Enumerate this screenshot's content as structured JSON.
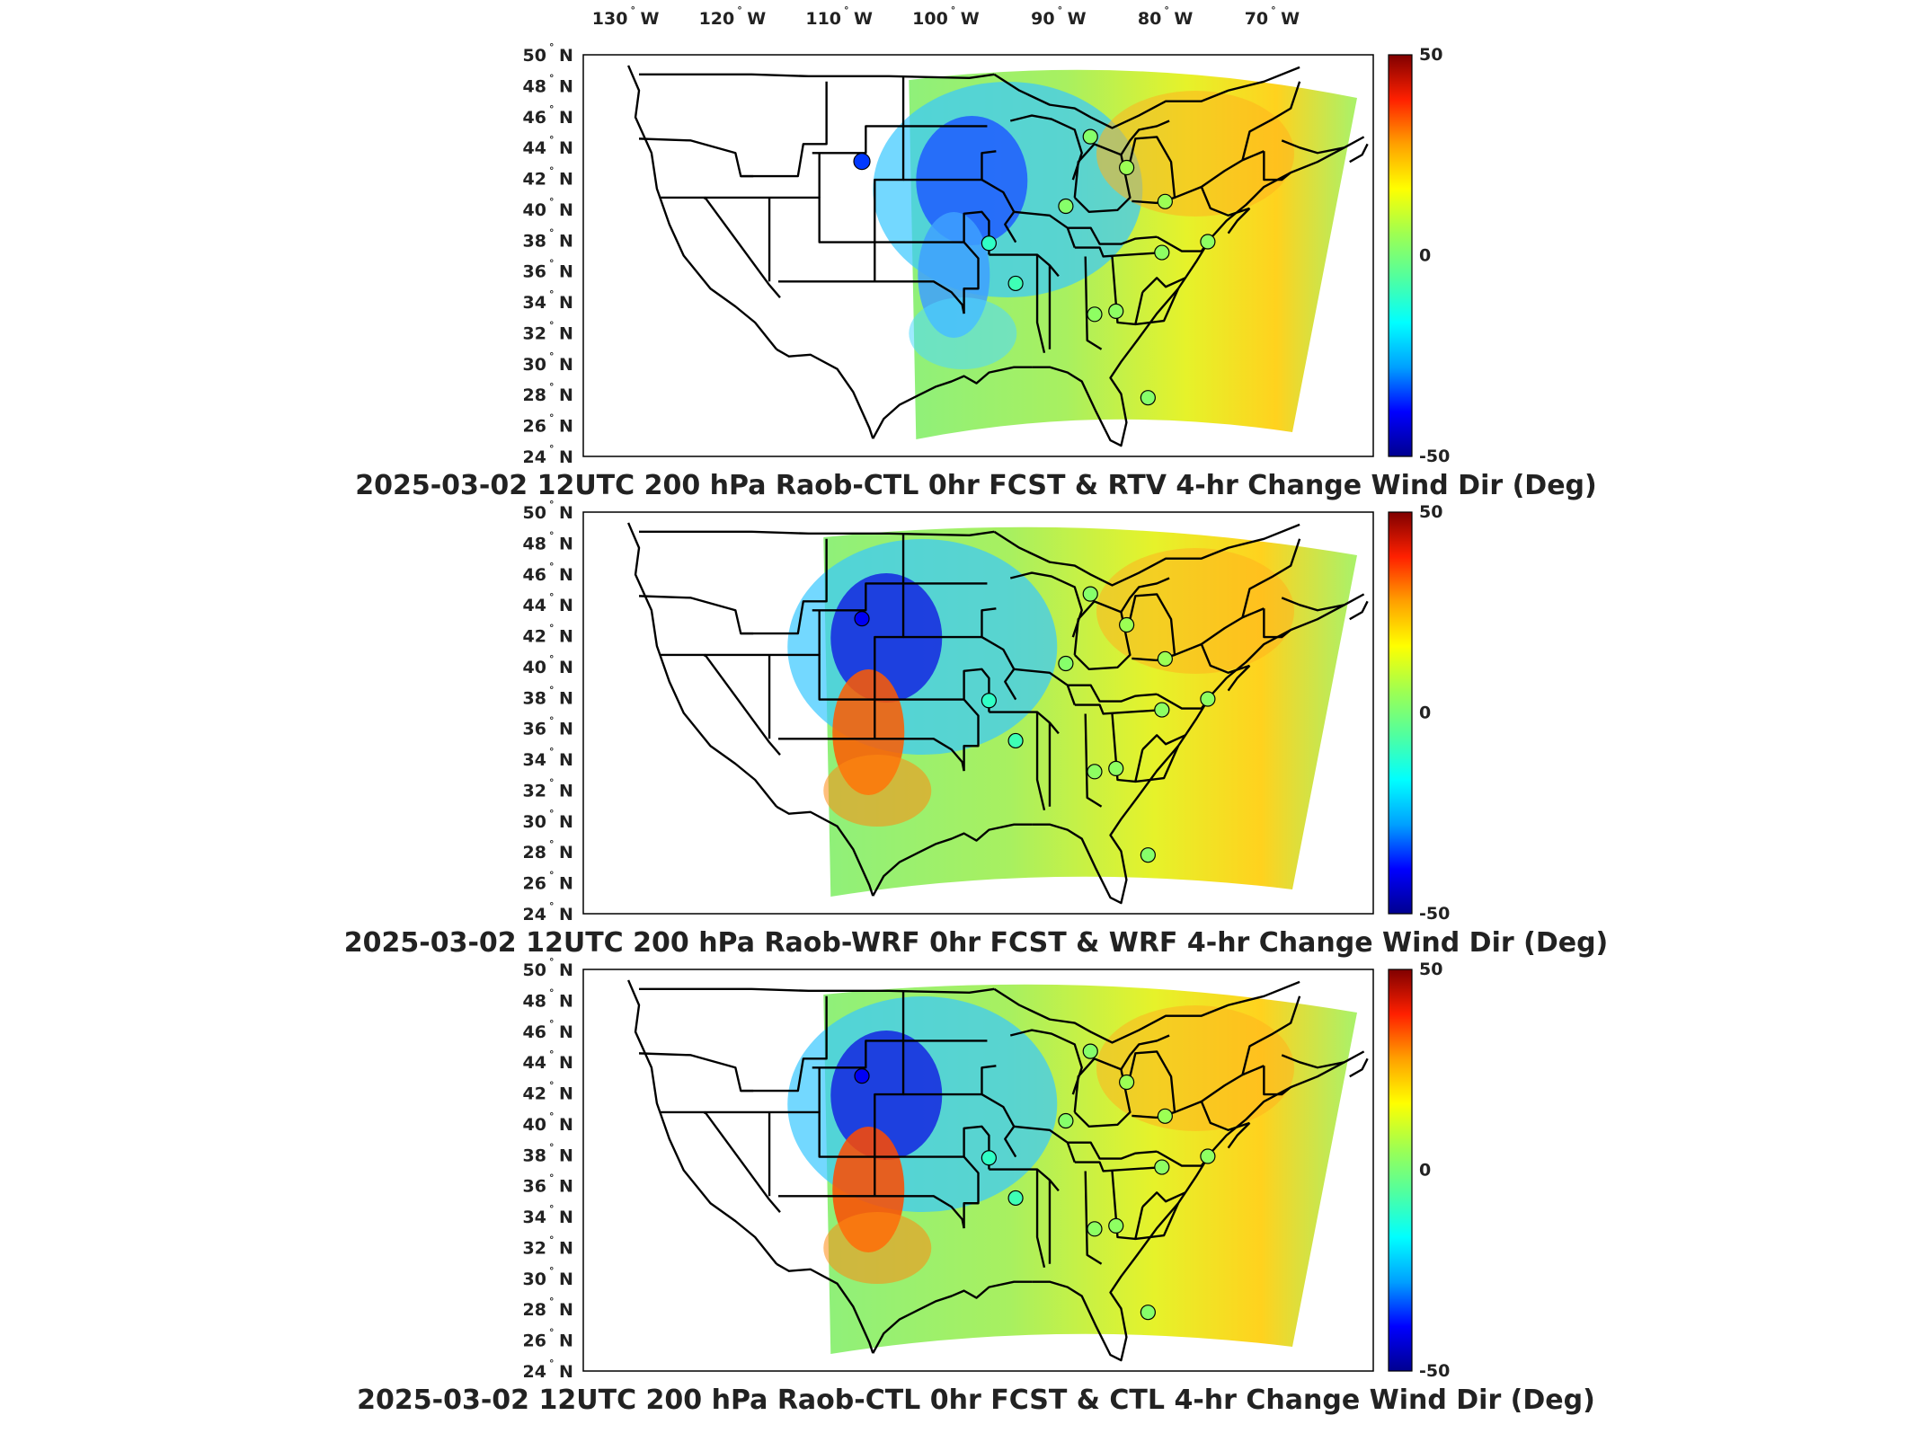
{
  "lon_ticks": [
    {
      "deg": "130",
      "hemi": "W"
    },
    {
      "deg": "120",
      "hemi": "W"
    },
    {
      "deg": "110",
      "hemi": "W"
    },
    {
      "deg": "100",
      "hemi": "W"
    },
    {
      "deg": "90",
      "hemi": "W"
    },
    {
      "deg": "80",
      "hemi": "W"
    },
    {
      "deg": "70",
      "hemi": "W"
    }
  ],
  "lat_ticks": [
    {
      "deg": "50",
      "hemi": "N"
    },
    {
      "deg": "48",
      "hemi": "N"
    },
    {
      "deg": "46",
      "hemi": "N"
    },
    {
      "deg": "44",
      "hemi": "N"
    },
    {
      "deg": "42",
      "hemi": "N"
    },
    {
      "deg": "40",
      "hemi": "N"
    },
    {
      "deg": "38",
      "hemi": "N"
    },
    {
      "deg": "36",
      "hemi": "N"
    },
    {
      "deg": "34",
      "hemi": "N"
    },
    {
      "deg": "32",
      "hemi": "N"
    },
    {
      "deg": "30",
      "hemi": "N"
    },
    {
      "deg": "28",
      "hemi": "N"
    },
    {
      "deg": "26",
      "hemi": "N"
    },
    {
      "deg": "24",
      "hemi": "N"
    }
  ],
  "colorbar": {
    "max_label": "50",
    "mid_label": "0",
    "min_label": "-50",
    "stops": [
      "#00008f",
      "#0000ff",
      "#00a0ff",
      "#00ffff",
      "#50ffa0",
      "#a0ff50",
      "#ffff00",
      "#ffa000",
      "#ff2000",
      "#800000"
    ]
  },
  "panels": [
    {
      "title": "2025-03-02 12UTC 200 hPa Raob-CTL 0hr FCST & RTV 4-hr Change Wind Dir (Deg)",
      "west_edge_lon": -104,
      "west_colors": [
        "#1e5cff",
        "#3ea0ff",
        "#4fd8ff"
      ],
      "stations": [
        {
          "lon": -108.4,
          "lat": 43.1,
          "value": -35,
          "filled": true
        },
        {
          "lon": -87.0,
          "lat": 44.7,
          "value": 2,
          "filled": false
        },
        {
          "lon": -83.6,
          "lat": 42.7,
          "value": 5,
          "filled": false
        },
        {
          "lon": -89.3,
          "lat": 40.2,
          "value": 2,
          "filled": false
        },
        {
          "lon": -80.0,
          "lat": 40.5,
          "value": 5,
          "filled": false
        },
        {
          "lon": -96.5,
          "lat": 37.8,
          "value": -10,
          "filled": false
        },
        {
          "lon": -80.3,
          "lat": 37.2,
          "value": 3,
          "filled": false
        },
        {
          "lon": -76.0,
          "lat": 37.9,
          "value": 3,
          "filled": false
        },
        {
          "lon": -94.0,
          "lat": 35.2,
          "value": -8,
          "filled": false
        },
        {
          "lon": -86.6,
          "lat": 33.2,
          "value": 3,
          "filled": false
        },
        {
          "lon": -84.6,
          "lat": 33.4,
          "value": 3,
          "filled": false
        },
        {
          "lon": -81.6,
          "lat": 27.8,
          "value": 2,
          "filled": false
        }
      ]
    },
    {
      "title": "2025-03-02 12UTC 200 hPa Raob-WRF 0hr FCST & WRF 4-hr Change Wind Dir (Deg)",
      "west_edge_lon": -112,
      "west_colors": [
        "#1426e0",
        "#ff5a00",
        "#ff8a10"
      ],
      "stations": [
        {
          "lon": -108.4,
          "lat": 43.1,
          "value": -40,
          "filled": false
        },
        {
          "lon": -87.0,
          "lat": 44.7,
          "value": 2,
          "filled": false
        },
        {
          "lon": -83.6,
          "lat": 42.7,
          "value": 5,
          "filled": false
        },
        {
          "lon": -89.3,
          "lat": 40.2,
          "value": 2,
          "filled": false
        },
        {
          "lon": -80.0,
          "lat": 40.5,
          "value": 5,
          "filled": false
        },
        {
          "lon": -96.5,
          "lat": 37.8,
          "value": -10,
          "filled": false
        },
        {
          "lon": -80.3,
          "lat": 37.2,
          "value": 3,
          "filled": false
        },
        {
          "lon": -76.0,
          "lat": 37.9,
          "value": 3,
          "filled": false
        },
        {
          "lon": -94.0,
          "lat": 35.2,
          "value": -8,
          "filled": false
        },
        {
          "lon": -86.6,
          "lat": 33.2,
          "value": 3,
          "filled": false
        },
        {
          "lon": -84.6,
          "lat": 33.4,
          "value": 3,
          "filled": false
        },
        {
          "lon": -81.6,
          "lat": 27.8,
          "value": 2,
          "filled": false
        }
      ]
    },
    {
      "title": "2025-03-02 12UTC 200 hPa Raob-CTL 0hr FCST & CTL 4-hr Change Wind Dir (Deg)",
      "west_edge_lon": -112,
      "west_colors": [
        "#1426e0",
        "#ff4a00",
        "#ff8a10"
      ],
      "stations": [
        {
          "lon": -108.4,
          "lat": 43.1,
          "value": -40,
          "filled": false
        },
        {
          "lon": -87.0,
          "lat": 44.7,
          "value": 2,
          "filled": false
        },
        {
          "lon": -83.6,
          "lat": 42.7,
          "value": 5,
          "filled": false
        },
        {
          "lon": -89.3,
          "lat": 40.2,
          "value": 2,
          "filled": false
        },
        {
          "lon": -80.0,
          "lat": 40.5,
          "value": 5,
          "filled": false
        },
        {
          "lon": -96.5,
          "lat": 37.8,
          "value": -10,
          "filled": false
        },
        {
          "lon": -80.3,
          "lat": 37.2,
          "value": 3,
          "filled": false
        },
        {
          "lon": -76.0,
          "lat": 37.9,
          "value": 3,
          "filled": false
        },
        {
          "lon": -94.0,
          "lat": 35.2,
          "value": -8,
          "filled": false
        },
        {
          "lon": -86.6,
          "lat": 33.2,
          "value": 3,
          "filled": false
        },
        {
          "lon": -84.6,
          "lat": 33.4,
          "value": 3,
          "filled": false
        },
        {
          "lon": -81.6,
          "lat": 27.8,
          "value": 2,
          "filled": false
        }
      ]
    }
  ]
}
